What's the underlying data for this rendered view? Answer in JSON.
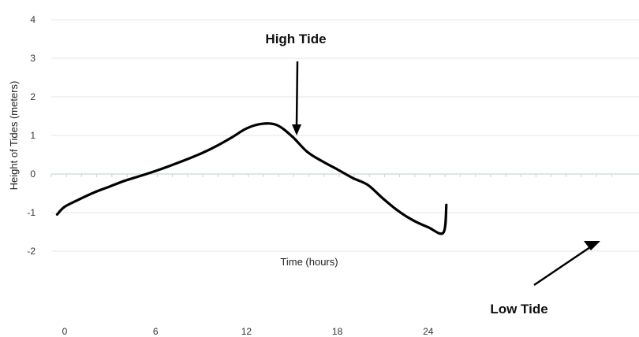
{
  "chart_data": {
    "type": "line",
    "title": "",
    "xlabel": "Time (hours)",
    "ylabel": "Height of Tides (meters)",
    "xlim": [
      -0.5,
      25.2
    ],
    "ylim": [
      -2,
      4
    ],
    "xticks": [
      0,
      6,
      12,
      18,
      24
    ],
    "yticks": [
      4,
      3,
      2,
      1,
      0,
      -1,
      -2
    ],
    "grid": true,
    "series": [
      {
        "color": "#000000",
        "x": [
          -0.5,
          0,
          1,
          2,
          3,
          4,
          5,
          6,
          7,
          8,
          9,
          10,
          11,
          12,
          13,
          14,
          15,
          16,
          17,
          18,
          19,
          20,
          21,
          22,
          23,
          24,
          25,
          25.2
        ],
        "y": [
          -1.05,
          -0.85,
          -0.65,
          -0.47,
          -0.32,
          -0.17,
          -0.05,
          0.08,
          0.22,
          0.37,
          0.53,
          0.72,
          0.94,
          1.18,
          1.3,
          1.27,
          0.98,
          0.58,
          0.33,
          0.12,
          -0.1,
          -0.28,
          -0.63,
          -0.95,
          -1.2,
          -1.38,
          -1.52,
          -0.8
        ]
      }
    ],
    "annotations": [
      {
        "text": "High Tide",
        "x": 12.4,
        "y": 1.3
      },
      {
        "text": "Low Tide",
        "x": 22.4,
        "y": -1.7
      }
    ]
  }
}
